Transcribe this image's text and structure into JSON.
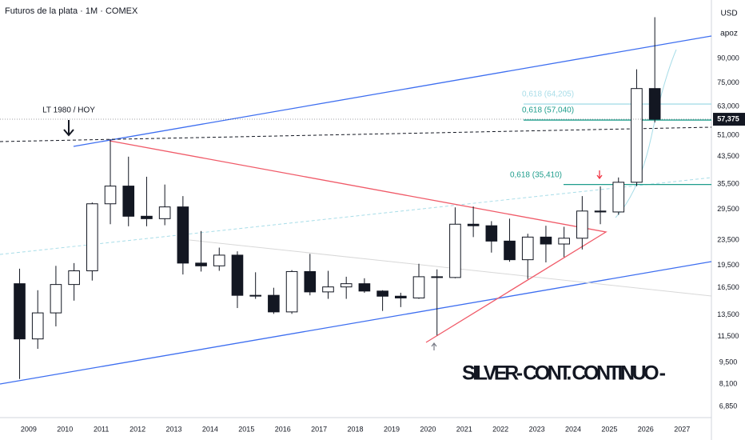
{
  "chart_data": {
    "type": "candlestick",
    "title": "Futuros de la plata · 1M · COMEX",
    "currency": "USD",
    "unit": "apoz",
    "log_scale": true,
    "grid": false,
    "up_color": "#ffffff",
    "down_color": "#131722",
    "xlim": [
      2008.21,
      2027.81
    ],
    "xticks": [
      2009,
      2010,
      2011,
      2012,
      2013,
      2014,
      2015,
      2016,
      2017,
      2018,
      2019,
      2020,
      2021,
      2022,
      2023,
      2024,
      2025,
      2026,
      2027
    ],
    "ylim": [
      6.39,
      138.6
    ],
    "yticks": [
      {
        "value": 6.85,
        "label": "6,850"
      },
      {
        "value": 8.1,
        "label": "8,100"
      },
      {
        "value": 9.5,
        "label": "9,500"
      },
      {
        "value": 11.5,
        "label": "11,500"
      },
      {
        "value": 13.5,
        "label": "13,500"
      },
      {
        "value": 16.5,
        "label": "16,500"
      },
      {
        "value": 19.5,
        "label": "19,500"
      },
      {
        "value": 23.5,
        "label": "23,500"
      },
      {
        "value": 29.5,
        "label": "29,500"
      },
      {
        "value": 35.5,
        "label": "35,500"
      },
      {
        "value": 43.5,
        "label": "43,500"
      },
      {
        "value": 51,
        "label": "51,000"
      },
      {
        "value": 63,
        "label": "63,000"
      },
      {
        "value": 75,
        "label": "75,000"
      },
      {
        "value": 90,
        "label": "90,000"
      }
    ],
    "x": [
      2008.75,
      2009.25,
      2009.75,
      2010.25,
      2010.75,
      2011.25,
      2011.75,
      2012.25,
      2012.75,
      2013.25,
      2013.75,
      2014.25,
      2014.75,
      2015.25,
      2015.75,
      2016.25,
      2016.75,
      2017.25,
      2017.75,
      2018.25,
      2018.75,
      2019.25,
      2019.75,
      2020.25,
      2020.75,
      2021.25,
      2021.75,
      2022.25,
      2022.75,
      2023.25,
      2023.75,
      2024.25,
      2024.75,
      2025.25,
      2025.75,
      2026.25
    ],
    "open": [
      17,
      11.3,
      13.7,
      16.9,
      18.7,
      30.7,
      35,
      28,
      27.5,
      30,
      19.8,
      19.4,
      21,
      15.6,
      15.6,
      13.8,
      18.6,
      16,
      16.6,
      17,
      16.1,
      15.5,
      15.3,
      17.9,
      17.8,
      26.4,
      26.1,
      23.3,
      20.3,
      24,
      22.8,
      23.8,
      29.1,
      28.9,
      36,
      72
    ],
    "high": [
      19,
      16.2,
      19.4,
      19.8,
      31,
      49.5,
      43.5,
      37.5,
      35.4,
      32.5,
      25.1,
      22.2,
      21.6,
      18.5,
      16.5,
      18.8,
      21.2,
      18.7,
      17.9,
      17.7,
      16.2,
      15.9,
      19.7,
      18.9,
      29.9,
      30.1,
      27,
      27.5,
      24.6,
      26.1,
      25.9,
      32.5,
      34.9,
      37.3,
      83,
      122
    ],
    "low": [
      8.4,
      10.5,
      12.4,
      15,
      17.4,
      26.4,
      26,
      26,
      26.2,
      18.2,
      18.6,
      18.7,
      14.2,
      15.2,
      13.6,
      13.6,
      15.6,
      15.2,
      15.2,
      15.9,
      13.9,
      14.3,
      15.2,
      11.6,
      17.7,
      24,
      21.4,
      20,
      17.6,
      19.9,
      20.7,
      21.9,
      26.4,
      28.3,
      35,
      56
    ],
    "close": [
      11.3,
      13.7,
      16.9,
      18.7,
      30.7,
      35,
      28,
      27.5,
      30,
      19.8,
      19.4,
      21,
      15.6,
      15.6,
      13.8,
      18.6,
      16,
      16.6,
      17,
      16.1,
      15.5,
      15.3,
      17.9,
      17.8,
      26.4,
      26.1,
      23.3,
      20.3,
      24,
      22.8,
      23.8,
      29.1,
      28.9,
      36,
      72,
      57.375
    ],
    "last_price": {
      "value": 57.375,
      "label": "57,375"
    },
    "levels": [
      {
        "value": 57.04,
        "label": "0,618 (57,040)",
        "color": "#1e9d8c"
      },
      {
        "value": 64.205,
        "label": "0,618 (64,205)",
        "color": "#a8dde8"
      },
      {
        "value": 35.41,
        "label": "0,618 (35,410)",
        "color": "#1e9d8c"
      }
    ],
    "annotations": [
      "LT 1980 / HOY",
      "SILVER- CONT. CONTINUO -"
    ]
  }
}
